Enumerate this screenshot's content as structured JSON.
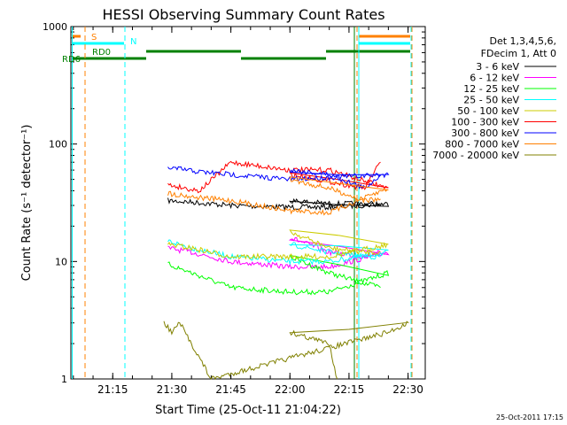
{
  "chart_data": {
    "type": "line",
    "title": "HESSI Observing Summary Count Rates",
    "xlabel": "Start Time (25-Oct-11 21:04:22)",
    "ylabel": "Count Rate (s⁻¹ detector⁻¹)",
    "yscale": "log",
    "ylim": [
      1,
      1000
    ],
    "xlim_minutes": [
      21.0,
      22.5
    ],
    "x_tick_labels": [
      "21:15",
      "21:30",
      "21:45",
      "22:00",
      "22:15",
      "22:30"
    ],
    "y_tick_labels": [
      "1",
      "10",
      "100",
      "1000"
    ],
    "legend_header": [
      "Det 1,3,4,5,6,",
      "FDecim 1, Att 0"
    ],
    "legend_placement": "right",
    "timestamp": "25-Oct-2011 17:15",
    "state_labels": {
      "S": "S",
      "N": "N",
      "RD0": "RD0",
      "RD6": "RD6"
    },
    "state_colors": {
      "S": "#ff8000",
      "N": "#00ffff",
      "RD": "#008000"
    },
    "series": [
      {
        "name": "3 - 6 keV",
        "color": "#000000",
        "t": [
          21.29,
          21.35,
          21.45,
          21.6,
          21.7,
          21.85,
          22.0,
          22.1,
          22.19,
          22.23
        ],
        "values": [
          33,
          32,
          30,
          29,
          29,
          31,
          33,
          31,
          31,
          31
        ]
      },
      {
        "name": "6 - 12 keV",
        "color": "#ff00ff",
        "t": [
          21.29,
          21.35,
          21.45,
          21.6,
          21.7,
          21.85,
          22.0,
          22.1,
          22.19,
          22.23
        ],
        "values": [
          13,
          12,
          10,
          9,
          9,
          12,
          16,
          12,
          11,
          12
        ]
      },
      {
        "name": "12 - 25 keV",
        "color": "#00ff00",
        "t": [
          21.29,
          21.35,
          21.45,
          21.6,
          21.7,
          21.85,
          22.0,
          22.1,
          22.19,
          22.23
        ],
        "values": [
          9.5,
          8,
          6,
          5.5,
          5.5,
          8,
          11,
          8,
          6.5,
          6
        ]
      },
      {
        "name": "25 - 50 keV",
        "color": "#00ffff",
        "t": [
          21.29,
          21.35,
          21.45,
          21.6,
          21.7,
          21.85,
          22.0,
          22.1,
          22.19,
          22.23
        ],
        "values": [
          15,
          13,
          11,
          10,
          10,
          12,
          14,
          12,
          11,
          11
        ]
      },
      {
        "name": "50 - 100 keV",
        "color": "#cccc00",
        "t": [
          21.29,
          21.35,
          21.45,
          21.6,
          21.7,
          21.85,
          22.0,
          22.1,
          22.19,
          22.23
        ],
        "values": [
          14,
          13,
          11,
          11,
          11,
          14,
          18,
          13,
          12,
          12
        ]
      },
      {
        "name": "100 - 300 keV",
        "color": "#ff0000",
        "t": [
          21.29,
          21.37,
          21.45,
          21.6,
          21.7,
          21.85,
          22.0,
          22.1,
          22.19,
          22.23
        ],
        "values": [
          45,
          40,
          70,
          60,
          60,
          42,
          55,
          48,
          42,
          70
        ]
      },
      {
        "name": "300 - 800 keV",
        "color": "#0000ff",
        "t": [
          21.29,
          21.37,
          21.45,
          21.6,
          21.7,
          21.85,
          22.0,
          22.1,
          22.19,
          22.23
        ],
        "values": [
          63,
          58,
          55,
          50,
          52,
          55,
          60,
          55,
          42,
          55
        ]
      },
      {
        "name": "800 - 7000 keV",
        "color": "#ff8000",
        "t": [
          21.29,
          21.37,
          21.45,
          21.6,
          21.7,
          21.85,
          22.0,
          22.1,
          22.19,
          22.23
        ],
        "values": [
          38,
          35,
          33,
          27,
          26,
          42,
          50,
          42,
          33,
          34
        ]
      },
      {
        "name": "7000 - 20000 keV",
        "color": "#808000",
        "t": [
          21.28,
          21.3,
          21.32,
          21.35,
          21.4,
          21.85,
          21.9,
          22.0,
          22.1,
          22.12
        ],
        "values": [
          3,
          2.5,
          3,
          2,
          1,
          2.5,
          3,
          2.5,
          2,
          1
        ]
      }
    ]
  }
}
